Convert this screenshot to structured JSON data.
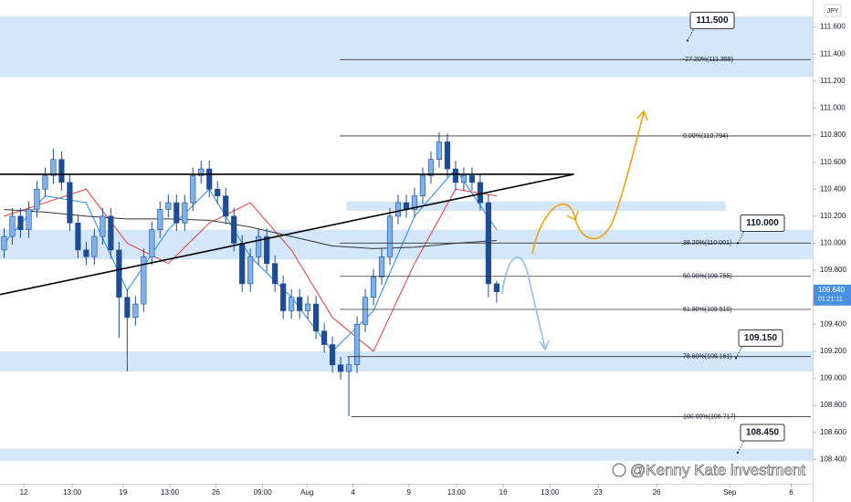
{
  "chart_data": {
    "type": "candlestick",
    "currency": "JPY",
    "watermark": "@Kenny Kate investment",
    "xlim": [
      -0.5,
      98.5
    ],
    "xticks": [
      {
        "value": 2.4,
        "label": "12"
      },
      {
        "value": 8.3,
        "label": "13:00"
      },
      {
        "value": 14.5,
        "label": "19"
      },
      {
        "value": 20.2,
        "label": "13:00"
      },
      {
        "value": 25.8,
        "label": "26"
      },
      {
        "value": 31.5,
        "label": "09:00"
      },
      {
        "value": 36.9,
        "label": "Aug"
      },
      {
        "value": 42.5,
        "label": "4"
      },
      {
        "value": 49.3,
        "label": "9"
      },
      {
        "value": 55.1,
        "label": "13:00"
      },
      {
        "value": 60.8,
        "label": "16"
      },
      {
        "value": 66.5,
        "label": "13:00"
      },
      {
        "value": 72.4,
        "label": "23"
      },
      {
        "value": 79.5,
        "label": "26"
      },
      {
        "value": 88.4,
        "label": "Sep"
      },
      {
        "value": 95.9,
        "label": "6"
      }
    ],
    "ylim": [
      108.22,
      111.8
    ],
    "yticks": [
      {
        "value": 108.4,
        "label": "108.400"
      },
      {
        "value": 108.6,
        "label": "108.600"
      },
      {
        "value": 108.8,
        "label": "108.800"
      },
      {
        "value": 109.0,
        "label": "109.000"
      },
      {
        "value": 109.2,
        "label": "109.200"
      },
      {
        "value": 109.4,
        "label": "109.400"
      },
      {
        "value": 109.6,
        "label": "109.600"
      },
      {
        "value": 109.8,
        "label": "109.800"
      },
      {
        "value": 110.0,
        "label": "110.000"
      },
      {
        "value": 110.2,
        "label": "110.200"
      },
      {
        "value": 110.4,
        "label": "110.400"
      },
      {
        "value": 110.6,
        "label": "110.600"
      },
      {
        "value": 110.8,
        "label": "110.800"
      },
      {
        "value": 111.0,
        "label": "111.000"
      },
      {
        "value": 111.2,
        "label": "111.200"
      },
      {
        "value": 111.4,
        "label": "111.400"
      },
      {
        "value": 111.6,
        "label": "111.600"
      }
    ],
    "up_color": "#7fb2ea",
    "down_color": "#1e4c94",
    "candles": {
      "open": [
        109.95,
        110.05,
        110.2,
        110.1,
        110.25,
        110.4,
        110.5,
        110.62,
        110.45,
        110.15,
        109.95,
        109.9,
        110.05,
        110.2,
        109.95,
        109.6,
        109.45,
        109.55,
        109.9,
        110.1,
        110.25,
        110.3,
        110.15,
        110.3,
        110.5,
        110.55,
        110.4,
        110.35,
        110.2,
        110.0,
        109.7,
        109.9,
        110.05,
        109.85,
        109.7,
        109.5,
        109.6,
        109.5,
        109.55,
        109.35,
        109.25,
        109.1,
        109.05,
        109.1,
        109.4,
        109.6,
        109.75,
        109.9,
        110.2,
        110.3,
        110.25,
        110.35,
        110.5,
        110.62,
        110.75,
        110.55,
        110.45,
        110.5,
        110.45,
        110.3,
        109.7
      ],
      "high": [
        110.11,
        110.26,
        110.26,
        110.31,
        110.46,
        110.56,
        110.7,
        110.68,
        110.51,
        110.21,
        110.01,
        110.11,
        110.26,
        110.26,
        110.01,
        109.66,
        109.61,
        109.96,
        110.16,
        110.31,
        110.36,
        110.36,
        110.36,
        110.56,
        110.61,
        110.61,
        110.46,
        110.41,
        110.26,
        110.06,
        109.96,
        110.11,
        110.11,
        109.91,
        109.76,
        109.66,
        109.66,
        109.61,
        109.61,
        109.41,
        109.31,
        109.16,
        109.16,
        109.46,
        109.66,
        109.81,
        109.96,
        110.26,
        110.36,
        110.36,
        110.41,
        110.56,
        110.68,
        110.82,
        110.81,
        110.61,
        110.56,
        110.56,
        110.51,
        110.36,
        109.72
      ],
      "low": [
        109.89,
        109.99,
        110.04,
        110.04,
        110.19,
        110.34,
        110.44,
        110.39,
        110.09,
        109.89,
        109.84,
        109.84,
        109.99,
        109.89,
        109.3,
        109.05,
        109.39,
        109.49,
        109.84,
        110.04,
        110.19,
        110.09,
        110.09,
        110.24,
        110.44,
        110.34,
        110.29,
        110.14,
        109.94,
        109.64,
        109.64,
        109.84,
        109.79,
        109.64,
        109.44,
        109.44,
        109.44,
        109.44,
        109.29,
        109.19,
        109.04,
        108.99,
        108.72,
        109.04,
        109.34,
        109.54,
        109.69,
        109.84,
        110.14,
        110.19,
        110.19,
        110.29,
        110.44,
        110.56,
        110.49,
        110.39,
        110.39,
        110.39,
        110.24,
        109.6,
        109.56
      ],
      "close": [
        110.05,
        110.2,
        110.1,
        110.25,
        110.4,
        110.5,
        110.62,
        110.45,
        110.15,
        109.95,
        109.9,
        110.05,
        110.2,
        109.95,
        109.6,
        109.45,
        109.55,
        109.9,
        110.1,
        110.25,
        110.3,
        110.15,
        110.3,
        110.5,
        110.55,
        110.4,
        110.35,
        110.2,
        110.0,
        109.7,
        109.9,
        110.05,
        109.85,
        109.7,
        109.5,
        109.6,
        109.5,
        109.55,
        109.35,
        109.25,
        109.1,
        109.05,
        109.1,
        109.4,
        109.6,
        109.75,
        109.9,
        110.2,
        110.3,
        110.25,
        110.35,
        110.5,
        110.62,
        110.75,
        110.55,
        110.45,
        110.5,
        110.45,
        110.3,
        109.7,
        109.64
      ]
    },
    "moving_averages": [
      {
        "color": "#e53935",
        "x": [
          0,
          5,
          10,
          15,
          20,
          25,
          30,
          35,
          40,
          45,
          50,
          55,
          60
        ],
        "values": [
          110.2,
          110.3,
          110.4,
          110.0,
          109.85,
          110.15,
          110.3,
          109.95,
          109.45,
          109.2,
          109.85,
          110.4,
          110.35
        ]
      },
      {
        "color": "#1e88e5",
        "x": [
          0,
          5,
          10,
          15,
          20,
          25,
          30,
          35,
          40,
          45,
          50,
          55,
          60
        ],
        "values": [
          110.0,
          110.35,
          110.3,
          109.65,
          110.1,
          110.4,
          109.9,
          109.6,
          109.2,
          109.5,
          110.2,
          110.55,
          110.1
        ]
      },
      {
        "color": "#333333",
        "x": [
          0,
          5,
          10,
          15,
          20,
          25,
          30,
          35,
          40,
          45,
          50,
          55,
          60
        ],
        "values": [
          110.25,
          110.23,
          110.2,
          110.18,
          110.18,
          110.17,
          110.12,
          110.05,
          109.98,
          109.96,
          109.97,
          110.0,
          110.02
        ]
      }
    ],
    "zone_color": "#d4e6fa",
    "zones": [
      {
        "from": 111.23,
        "to": 111.68
      },
      {
        "from": 110.24,
        "to": 110.31,
        "x": [
          41.7,
          87.9
        ]
      },
      {
        "from": 109.88,
        "to": 110.1
      },
      {
        "from": 109.05,
        "to": 109.2
      },
      {
        "from": 108.39,
        "to": 108.48
      }
    ],
    "trendlines": [
      {
        "x": [
          -0.5,
          69.4
        ],
        "y": [
          110.51,
          110.51
        ]
      },
      {
        "x": [
          -0.5,
          69.4
        ],
        "y": [
          109.62,
          110.51
        ]
      }
    ],
    "fib_levels": [
      {
        "value": 111.359,
        "label": "-27.20%(111.359)",
        "x_start": 40.9
      },
      {
        "value": 110.794,
        "label": "0.00%(110.794)",
        "x_start": 40.9
      },
      {
        "value": 110.001,
        "label": "38.20%(110.001)",
        "x_start": 40.9
      },
      {
        "value": 109.755,
        "label": "50.00%(109.755)",
        "x_start": 40.9
      },
      {
        "value": 109.51,
        "label": "61.80%(109.510)",
        "x_start": 40.9
      },
      {
        "value": 109.161,
        "label": "78.60%(109.161)",
        "x_start": 41.8
      },
      {
        "value": 108.717,
        "label": "100.00%(108.717)",
        "x_start": 42.3
      }
    ],
    "price_callouts": [
      {
        "value": 111.5,
        "label": "111.500"
      },
      {
        "value": 110.0,
        "label": "110.000"
      },
      {
        "value": 109.15,
        "label": "109.150"
      },
      {
        "value": 108.45,
        "label": "108.450"
      }
    ],
    "last_price": {
      "value": 109.64,
      "label": "109.640"
    },
    "countdown": "01:21:11"
  }
}
